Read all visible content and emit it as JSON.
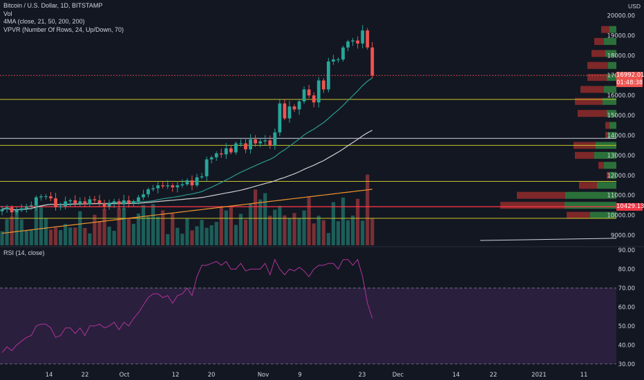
{
  "legend": {
    "title": "Bitcoin / U.S. Dollar, 1D, BITSTAMP",
    "vol": "Vol",
    "ma": "4MA (close, 21, 50, 200, 200)",
    "vpvr": "VPVR (Number Of Rows, 24, Up/Down, 70)"
  },
  "rsi_legend": "RSI (14, close)",
  "currency": "USD",
  "price_tags": {
    "last_price": "16992.01",
    "countdown": "01:48:38",
    "level": "10429.13"
  },
  "colors": {
    "background": "#131722",
    "up": "#26a69a",
    "down": "#ef5350",
    "yellow_line": "#c9c42b",
    "white_line": "#d1d4dc",
    "red_line": "#f23645",
    "ma21": "#2a9d8f",
    "ma50": "#cfcfcf",
    "ma200": "#f2952c",
    "rsi_line": "#b0349b",
    "rsi_band": "#2a1f3d"
  },
  "chart_data": [
    {
      "type": "candlestick",
      "title": "Bitcoin / U.S. Dollar, 1D, BITSTAMP",
      "ylim": [
        8500,
        20500
      ],
      "y_ticks": [
        "9000.00",
        "10000.00",
        "11000.00",
        "12000.00",
        "13000.00",
        "14000.00",
        "15000.00",
        "16000.00",
        "17000.00",
        "18000.00",
        "19000.00",
        "20000.00"
      ],
      "x_ticks": [
        "14",
        "22",
        "Oct",
        "12",
        "20",
        "Nov",
        "9",
        "23",
        "Dec",
        "14",
        "22",
        "2021",
        "11"
      ],
      "horizontal_levels": [
        {
          "price": 15800,
          "color": "yellow"
        },
        {
          "price": 13850,
          "color": "white"
        },
        {
          "price": 13500,
          "color": "yellow"
        },
        {
          "price": 11700,
          "color": "yellow"
        },
        {
          "price": 10429.13,
          "color": "red"
        },
        {
          "price": 9850,
          "color": "yellow"
        }
      ],
      "close": [
        10300,
        10400,
        10150,
        10250,
        10350,
        10450,
        10500,
        10900,
        10950,
        10950,
        10850,
        10400,
        10450,
        10700,
        10750,
        10600,
        10700,
        10550,
        10800,
        10750,
        10600,
        10450,
        10600,
        10700,
        10550,
        10750,
        10600,
        10700,
        10900,
        11050,
        11300,
        11350,
        11500,
        11450,
        11500,
        11400,
        11500,
        11550,
        11750,
        11500,
        11900,
        11950,
        12800,
        12900,
        13100,
        13050,
        13350,
        13150,
        13600,
        13600,
        13300,
        13800,
        13600,
        13700,
        13750,
        13500,
        14150,
        15600,
        14850,
        15450,
        15300,
        15700,
        16300,
        16000,
        15650,
        16750,
        16300,
        17700,
        17800,
        17800,
        18400,
        18700,
        18750,
        18600,
        19250,
        18400,
        17000
      ],
      "volume_note": "Vol"
    },
    {
      "type": "line",
      "title": "RSI (14, close)",
      "ylim": [
        27,
        90
      ],
      "y_ticks": [
        "30.00",
        "40.00",
        "50.00",
        "60.00",
        "70.00",
        "80.00",
        "90.00"
      ],
      "bands": [
        30,
        70
      ],
      "values": [
        36,
        39,
        37,
        40,
        42,
        44,
        45,
        50,
        51,
        51,
        49,
        44,
        45,
        49,
        49,
        46,
        49,
        45,
        50,
        50,
        51,
        49,
        50,
        52,
        48,
        52,
        50,
        54,
        57,
        61,
        65,
        67,
        67,
        65,
        66,
        62,
        66,
        67,
        70,
        66,
        76,
        82,
        82,
        83,
        84,
        82,
        84,
        80,
        80,
        83,
        79,
        80,
        80,
        80,
        83,
        77,
        85,
        80,
        77,
        80,
        79,
        81,
        79,
        76,
        80,
        82,
        82,
        83,
        83,
        80,
        85,
        85,
        82,
        85,
        76,
        62,
        54
      ]
    }
  ]
}
